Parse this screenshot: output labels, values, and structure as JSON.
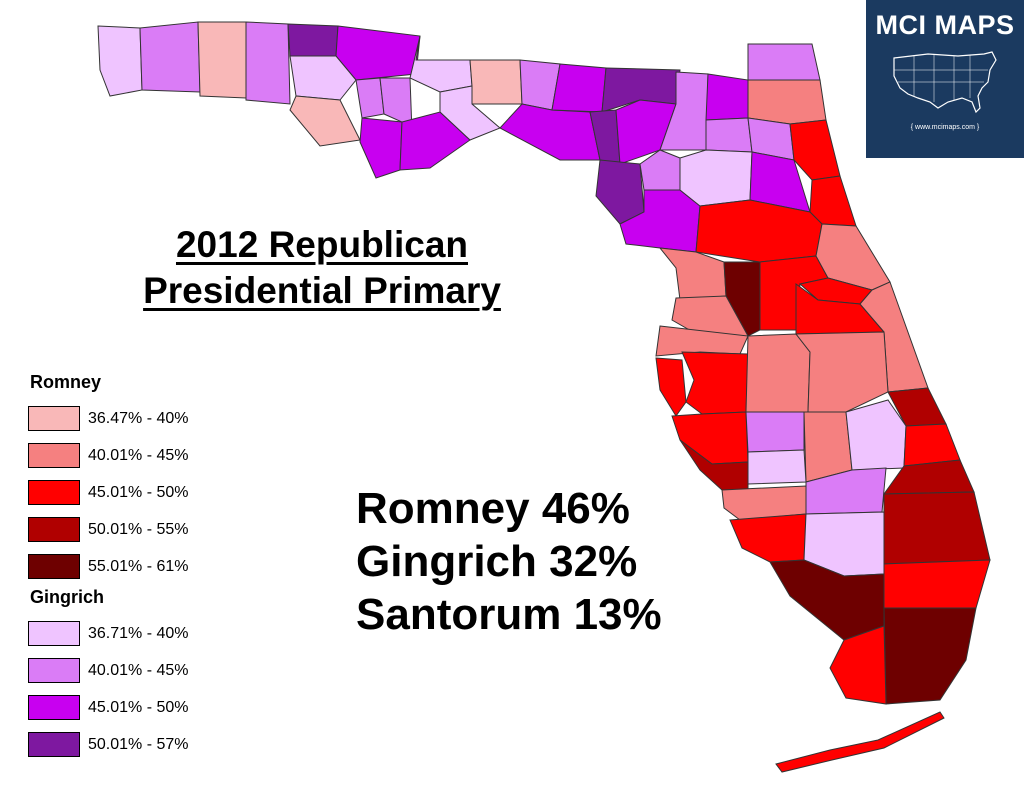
{
  "title_lines": [
    "2012 Republican",
    "Presidential Primary"
  ],
  "results": [
    "Romney 46%",
    "Gingrich 32%",
    "Santorum 13%"
  ],
  "legend": {
    "romney": {
      "title": "Romney",
      "items": [
        {
          "label": "36.47% - 40%",
          "color": "#f9b8b8"
        },
        {
          "label": "40.01% - 45%",
          "color": "#f58080"
        },
        {
          "label": "45.01% - 50%",
          "color": "#ff0000"
        },
        {
          "label": "50.01% - 55%",
          "color": "#b00000"
        },
        {
          "label": "55.01% - 61%",
          "color": "#6e0000"
        }
      ]
    },
    "gingrich": {
      "title": "Gingrich",
      "items": [
        {
          "label": "36.71% - 40%",
          "color": "#efc4ff"
        },
        {
          "label": "40.01% - 45%",
          "color": "#da7cf6"
        },
        {
          "label": "45.01% - 50%",
          "color": "#c800f0"
        },
        {
          "label": "50.01% - 57%",
          "color": "#7e18a0"
        }
      ]
    }
  },
  "logo": {
    "title": "MCI MAPS",
    "url": "{ www.mcimaps.com }",
    "background": "#1b3a60"
  }
}
